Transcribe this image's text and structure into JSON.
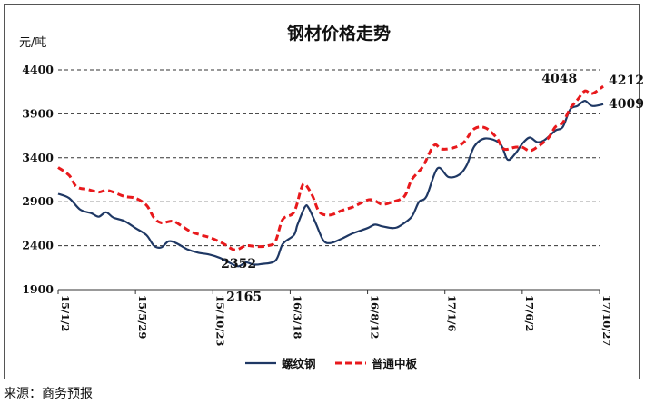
{
  "source": "来源：商务预报",
  "chart_data": {
    "type": "line",
    "title": "钢材价格走势",
    "unit": "元/吨",
    "ylim": [
      1900,
      4400
    ],
    "yticks": [
      1900,
      2400,
      2900,
      3400,
      3900,
      4400
    ],
    "grid": "horizontal dashed",
    "legend_position": "bottom",
    "xticks": [
      "15/1/2",
      "15/5/29",
      "15/10/23",
      "16/3/18",
      "16/8/12",
      "17/1/6",
      "17/6/2",
      "17/10/27"
    ],
    "xtick_index": [
      0,
      21,
      42,
      63,
      84,
      105,
      126,
      147
    ],
    "x_count": 148,
    "series": [
      {
        "name": "螺纹钢",
        "color": "#1f3864",
        "dash": "solid",
        "points": [
          [
            0,
            2990
          ],
          [
            3,
            2940
          ],
          [
            6,
            2810
          ],
          [
            9,
            2770
          ],
          [
            11,
            2730
          ],
          [
            13,
            2780
          ],
          [
            15,
            2720
          ],
          [
            18,
            2680
          ],
          [
            21,
            2600
          ],
          [
            24,
            2520
          ],
          [
            26,
            2400
          ],
          [
            28,
            2380
          ],
          [
            30,
            2450
          ],
          [
            32,
            2430
          ],
          [
            35,
            2360
          ],
          [
            38,
            2320
          ],
          [
            41,
            2300
          ],
          [
            44,
            2260
          ],
          [
            47,
            2195
          ],
          [
            49,
            2165
          ],
          [
            51,
            2210
          ],
          [
            53,
            2185
          ],
          [
            55,
            2190
          ],
          [
            59,
            2230
          ],
          [
            61,
            2420
          ],
          [
            64,
            2520
          ],
          [
            65,
            2640
          ],
          [
            67,
            2840
          ],
          [
            68,
            2830
          ],
          [
            70,
            2650
          ],
          [
            72,
            2460
          ],
          [
            74,
            2430
          ],
          [
            77,
            2480
          ],
          [
            80,
            2540
          ],
          [
            84,
            2600
          ],
          [
            86,
            2640
          ],
          [
            88,
            2620
          ],
          [
            91,
            2600
          ],
          [
            93,
            2630
          ],
          [
            96,
            2730
          ],
          [
            98,
            2900
          ],
          [
            100,
            2960
          ],
          [
            103,
            3280
          ],
          [
            106,
            3180
          ],
          [
            109,
            3210
          ],
          [
            111,
            3320
          ],
          [
            113,
            3530
          ],
          [
            116,
            3620
          ],
          [
            120,
            3560
          ],
          [
            122,
            3380
          ],
          [
            124,
            3440
          ],
          [
            126,
            3560
          ],
          [
            128,
            3630
          ],
          [
            130,
            3580
          ],
          [
            132,
            3600
          ],
          [
            135,
            3710
          ],
          [
            137,
            3750
          ],
          [
            139,
            3950
          ],
          [
            141,
            3990
          ],
          [
            143,
            4048
          ],
          [
            145,
            3990
          ],
          [
            148,
            4009
          ]
        ]
      },
      {
        "name": "普通中板",
        "color": "#e8191c",
        "dash": "dashed",
        "points": [
          [
            0,
            3290
          ],
          [
            3,
            3200
          ],
          [
            5,
            3070
          ],
          [
            8,
            3040
          ],
          [
            11,
            3010
          ],
          [
            13,
            3030
          ],
          [
            15,
            3010
          ],
          [
            18,
            2960
          ],
          [
            21,
            2940
          ],
          [
            24,
            2860
          ],
          [
            26,
            2720
          ],
          [
            28,
            2660
          ],
          [
            31,
            2680
          ],
          [
            33,
            2640
          ],
          [
            36,
            2560
          ],
          [
            39,
            2520
          ],
          [
            42,
            2480
          ],
          [
            45,
            2420
          ],
          [
            48,
            2352
          ],
          [
            51,
            2400
          ],
          [
            54,
            2390
          ],
          [
            57,
            2400
          ],
          [
            59,
            2450
          ],
          [
            61,
            2700
          ],
          [
            64,
            2780
          ],
          [
            66,
            3050
          ],
          [
            67,
            3100
          ],
          [
            69,
            2970
          ],
          [
            71,
            2780
          ],
          [
            74,
            2750
          ],
          [
            77,
            2800
          ],
          [
            80,
            2840
          ],
          [
            84,
            2920
          ],
          [
            86,
            2910
          ],
          [
            88,
            2870
          ],
          [
            91,
            2900
          ],
          [
            94,
            2960
          ],
          [
            96,
            3150
          ],
          [
            99,
            3300
          ],
          [
            102,
            3540
          ],
          [
            104,
            3500
          ],
          [
            107,
            3510
          ],
          [
            110,
            3570
          ],
          [
            113,
            3730
          ],
          [
            116,
            3740
          ],
          [
            119,
            3630
          ],
          [
            121,
            3500
          ],
          [
            124,
            3520
          ],
          [
            126,
            3520
          ],
          [
            128,
            3480
          ],
          [
            130,
            3520
          ],
          [
            133,
            3620
          ],
          [
            135,
            3750
          ],
          [
            137,
            3800
          ],
          [
            139,
            3960
          ],
          [
            141,
            4060
          ],
          [
            143,
            4160
          ],
          [
            145,
            4130
          ],
          [
            148,
            4212
          ]
        ]
      }
    ],
    "annotations": [
      {
        "text": "2352",
        "series": "普通中板",
        "x": 48,
        "y": 2352
      },
      {
        "text": "2165",
        "series": "螺纹钢",
        "x": 49,
        "y": 2165
      },
      {
        "text": "4048",
        "series": "螺纹钢",
        "x": 143,
        "y": 4048
      },
      {
        "text": "4212",
        "series": "普通中板",
        "x": 148,
        "y": 4212
      },
      {
        "text": "4009",
        "series": "螺纹钢",
        "x": 148,
        "y": 4009
      }
    ]
  }
}
